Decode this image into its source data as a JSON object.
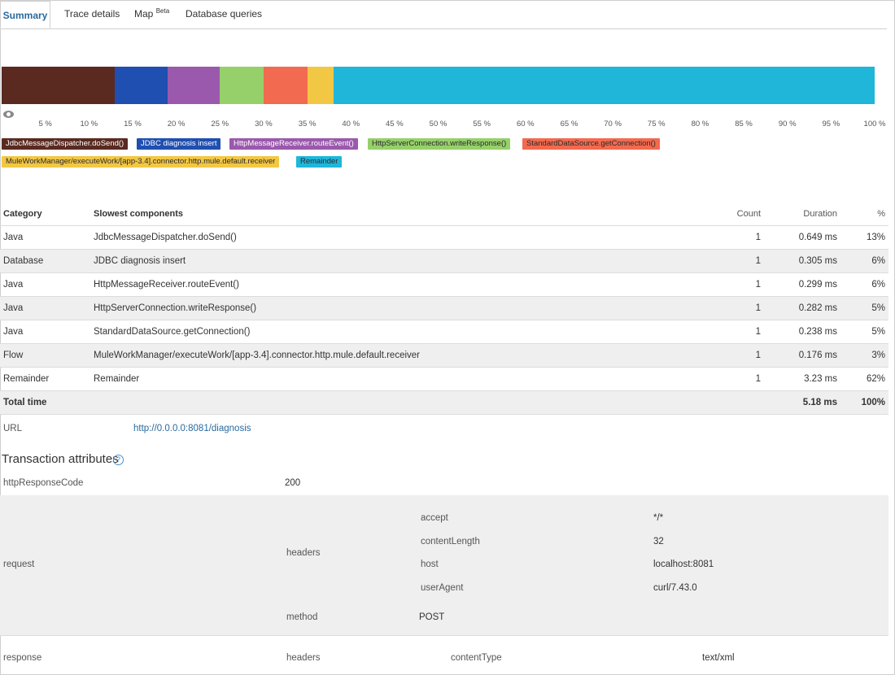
{
  "tabs": [
    {
      "label": "Summary",
      "active": true
    },
    {
      "label": "Trace details",
      "active": false
    },
    {
      "label": "Map",
      "badge": "Beta",
      "active": false
    },
    {
      "label": "Database queries",
      "active": false
    }
  ],
  "chart_data": {
    "type": "bar",
    "orientation": "horizontal-stacked",
    "xlim": [
      0,
      100
    ],
    "ticks": [
      "5 %",
      "10 %",
      "15 %",
      "20 %",
      "25 %",
      "30 %",
      "35 %",
      "40 %",
      "45 %",
      "50 %",
      "55 %",
      "60 %",
      "65 %",
      "70 %",
      "75 %",
      "80 %",
      "85 %",
      "90 %",
      "95 %",
      "100 %"
    ],
    "series": [
      {
        "name": "JdbcMessageDispatcher.doSend()",
        "value": 13,
        "color": "#5a2a20",
        "text_color": "#ffffff"
      },
      {
        "name": "JDBC diagnosis insert",
        "value": 6,
        "color": "#1f4fb0",
        "text_color": "#ffffff"
      },
      {
        "name": "HttpMessageReceiver.routeEvent()",
        "value": 6,
        "color": "#9b59ad",
        "text_color": "#ffffff"
      },
      {
        "name": "HttpServerConnection.writeResponse()",
        "value": 5,
        "color": "#96d06a",
        "text_color": "#2a2a2a"
      },
      {
        "name": "StandardDataSource.getConnection()",
        "value": 5,
        "color": "#f26a4f",
        "text_color": "#2a2a2a"
      },
      {
        "name": "MuleWorkManager/executeWork/[app-3.4].connector.http.mule.default.receiver",
        "value": 3,
        "color": "#f2c744",
        "text_color": "#2a2a2a"
      },
      {
        "name": "Remainder",
        "value": 62,
        "color": "#1fb6da",
        "text_color": "#2a2a2a"
      }
    ]
  },
  "table": {
    "headers": {
      "category": "Category",
      "component": "Slowest components",
      "count": "Count",
      "duration": "Duration",
      "pct": "%"
    },
    "rows": [
      {
        "category": "Java",
        "component": "JdbcMessageDispatcher.doSend()",
        "count": "1",
        "duration": "0.649 ms",
        "pct": "13%"
      },
      {
        "category": "Database",
        "component": "JDBC diagnosis insert",
        "count": "1",
        "duration": "0.305 ms",
        "pct": "6%"
      },
      {
        "category": "Java",
        "component": "HttpMessageReceiver.routeEvent()",
        "count": "1",
        "duration": "0.299 ms",
        "pct": "6%"
      },
      {
        "category": "Java",
        "component": "HttpServerConnection.writeResponse()",
        "count": "1",
        "duration": "0.282 ms",
        "pct": "5%"
      },
      {
        "category": "Java",
        "component": "StandardDataSource.getConnection()",
        "count": "1",
        "duration": "0.238 ms",
        "pct": "5%"
      },
      {
        "category": "Flow",
        "component": "MuleWorkManager/executeWork/[app-3.4].connector.http.mule.default.receiver",
        "count": "1",
        "duration": "0.176 ms",
        "pct": "3%"
      },
      {
        "category": "Remainder",
        "component": "Remainder",
        "count": "1",
        "duration": "3.23 ms",
        "pct": "62%"
      }
    ],
    "total": {
      "label": "Total time",
      "duration": "5.18 ms",
      "pct": "100%"
    }
  },
  "url": {
    "label": "URL",
    "value": "http://0.0.0.0:8081/diagnosis"
  },
  "attributes": {
    "title": "Transaction attributes",
    "help_icon": "?",
    "http_response_code": {
      "key": "httpResponseCode",
      "value": "200"
    },
    "request": {
      "key": "request",
      "headers_key": "headers",
      "headers": [
        {
          "key": "accept",
          "value": "*/*"
        },
        {
          "key": "contentLength",
          "value": "32"
        },
        {
          "key": "host",
          "value": "localhost:8081"
        },
        {
          "key": "userAgent",
          "value": "curl/7.43.0"
        }
      ],
      "method_key": "method",
      "method_value": "POST"
    },
    "response": {
      "key": "response",
      "headers_key": "headers",
      "content_type_key": "contentType",
      "content_type_value": "text/xml"
    }
  }
}
